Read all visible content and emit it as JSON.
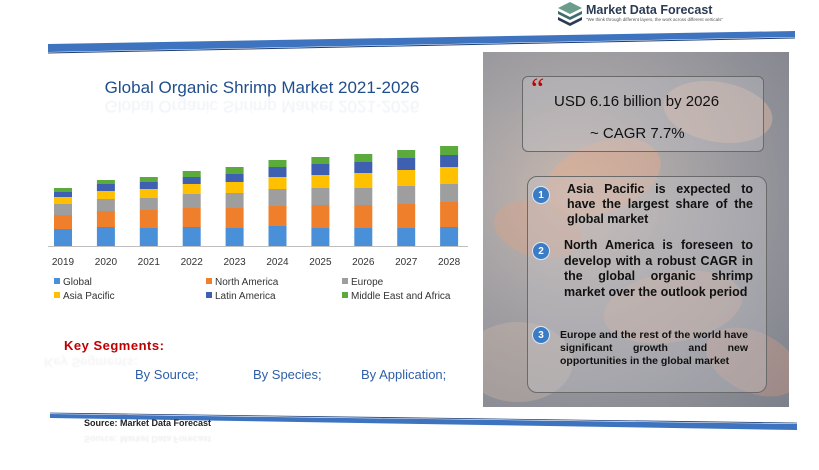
{
  "brand": {
    "name": "Market Data Forecast",
    "tagline": "\"We think through different layers, the work across different verticals\"",
    "logo_icon": "stacked-layers-icon",
    "colors": {
      "dark": "#2a3b55",
      "mid": "#3e6b6b",
      "light": "#6b9c8c"
    }
  },
  "chart_data": {
    "type": "bar",
    "stacked": true,
    "title": "Global Organic Shrimp Market 2021-2026",
    "categories": [
      "2019",
      "2020",
      "2021",
      "2022",
      "2023",
      "2024",
      "2025",
      "2026",
      "2027",
      "2028"
    ],
    "series": [
      {
        "name": "Global",
        "color": "#4a90d9",
        "values": [
          17,
          19,
          18,
          19,
          18,
          20,
          18,
          18,
          18,
          19
        ]
      },
      {
        "name": "North America",
        "color": "#f07f2c",
        "values": [
          14,
          16,
          18,
          19,
          20,
          20,
          23,
          23,
          24,
          25
        ]
      },
      {
        "name": "Europe",
        "color": "#9e9e9e",
        "values": [
          11,
          12,
          12,
          14,
          15,
          17,
          17,
          17,
          18,
          18
        ]
      },
      {
        "name": "Asia Pacific",
        "color": "#ffc000",
        "values": [
          7,
          8,
          9,
          10,
          11,
          12,
          13,
          15,
          16,
          17
        ]
      },
      {
        "name": "Latin America",
        "color": "#3f5fb0",
        "values": [
          5,
          7,
          7,
          7,
          8,
          10,
          11,
          11,
          12,
          12
        ]
      },
      {
        "name": "Middle East and Africa",
        "color": "#5aaa3c",
        "values": [
          4,
          4,
          5,
          6,
          7,
          7,
          7,
          8,
          8,
          9
        ]
      }
    ],
    "legend_position": "bottom",
    "grid": false
  },
  "stats": {
    "quote_mark": "“",
    "market_size": "USD 6.16 billion  by 2026",
    "cagr": "~ CAGR 7.7%"
  },
  "key_points": [
    {
      "number": "1",
      "text": "Asia Pacific is expected to have the largest share of the global market"
    },
    {
      "number": "2",
      "text": "North America is foreseen to develop with a robust CAGR in the global organic shrimp market over the outlook period"
    },
    {
      "number": "3",
      "text": "Europe and the rest of the world have significant growth and new opportunities in the global market"
    }
  ],
  "key_segments": {
    "title": "Key Segments:",
    "items": [
      "By Source;",
      "By Species;",
      "By Application;"
    ]
  },
  "source": "Source:  Market  Data  Forecast",
  "accent_colors": {
    "band": "#3d73bf",
    "heading_red": "#c00000",
    "segment_blue": "#2e5fa8"
  }
}
